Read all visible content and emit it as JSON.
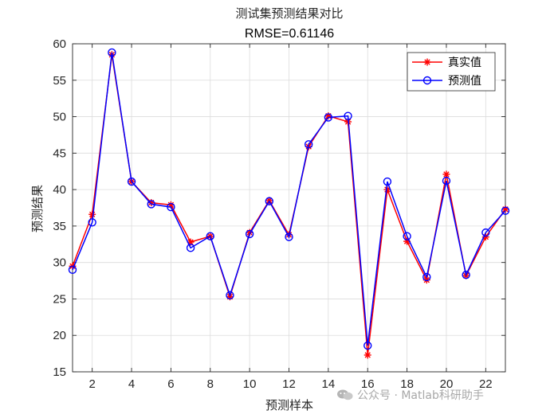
{
  "chart_data": {
    "type": "line",
    "title": "测试集预测结果对比",
    "subtitle": "RMSE=0.61146",
    "xlabel": "预测样本",
    "ylabel": "预测结果",
    "xlim": [
      1,
      23
    ],
    "ylim": [
      15,
      60
    ],
    "xticks": [
      2,
      4,
      6,
      8,
      10,
      12,
      14,
      16,
      18,
      20,
      22
    ],
    "yticks": [
      15,
      20,
      25,
      30,
      35,
      40,
      45,
      50,
      55,
      60
    ],
    "grid": true,
    "legend_position": "top-right",
    "x": [
      1,
      2,
      3,
      4,
      5,
      6,
      7,
      8,
      9,
      10,
      11,
      12,
      13,
      14,
      15,
      16,
      17,
      18,
      19,
      20,
      21,
      22,
      23
    ],
    "series": [
      {
        "name": "真实值",
        "color": "#ff0000",
        "marker": "asterisk",
        "values": [
          29.5,
          36.6,
          58.5,
          41.1,
          38.2,
          37.9,
          32.8,
          33.6,
          25.3,
          34.1,
          38.5,
          33.8,
          45.9,
          50.1,
          49.3,
          17.3,
          40.0,
          32.9,
          27.6,
          42.1,
          28.2,
          33.5,
          37.3
        ]
      },
      {
        "name": "预测值",
        "color": "#0000ff",
        "marker": "circle",
        "values": [
          29.0,
          35.5,
          58.8,
          41.1,
          38.0,
          37.6,
          32.0,
          33.6,
          25.5,
          33.9,
          38.4,
          33.5,
          46.2,
          49.9,
          50.1,
          18.6,
          41.1,
          33.6,
          28.0,
          41.2,
          28.3,
          34.1,
          37.1
        ]
      }
    ]
  },
  "watermark": {
    "icon": "wechat-icon",
    "text": "公众号 · Matlab科研助手"
  }
}
